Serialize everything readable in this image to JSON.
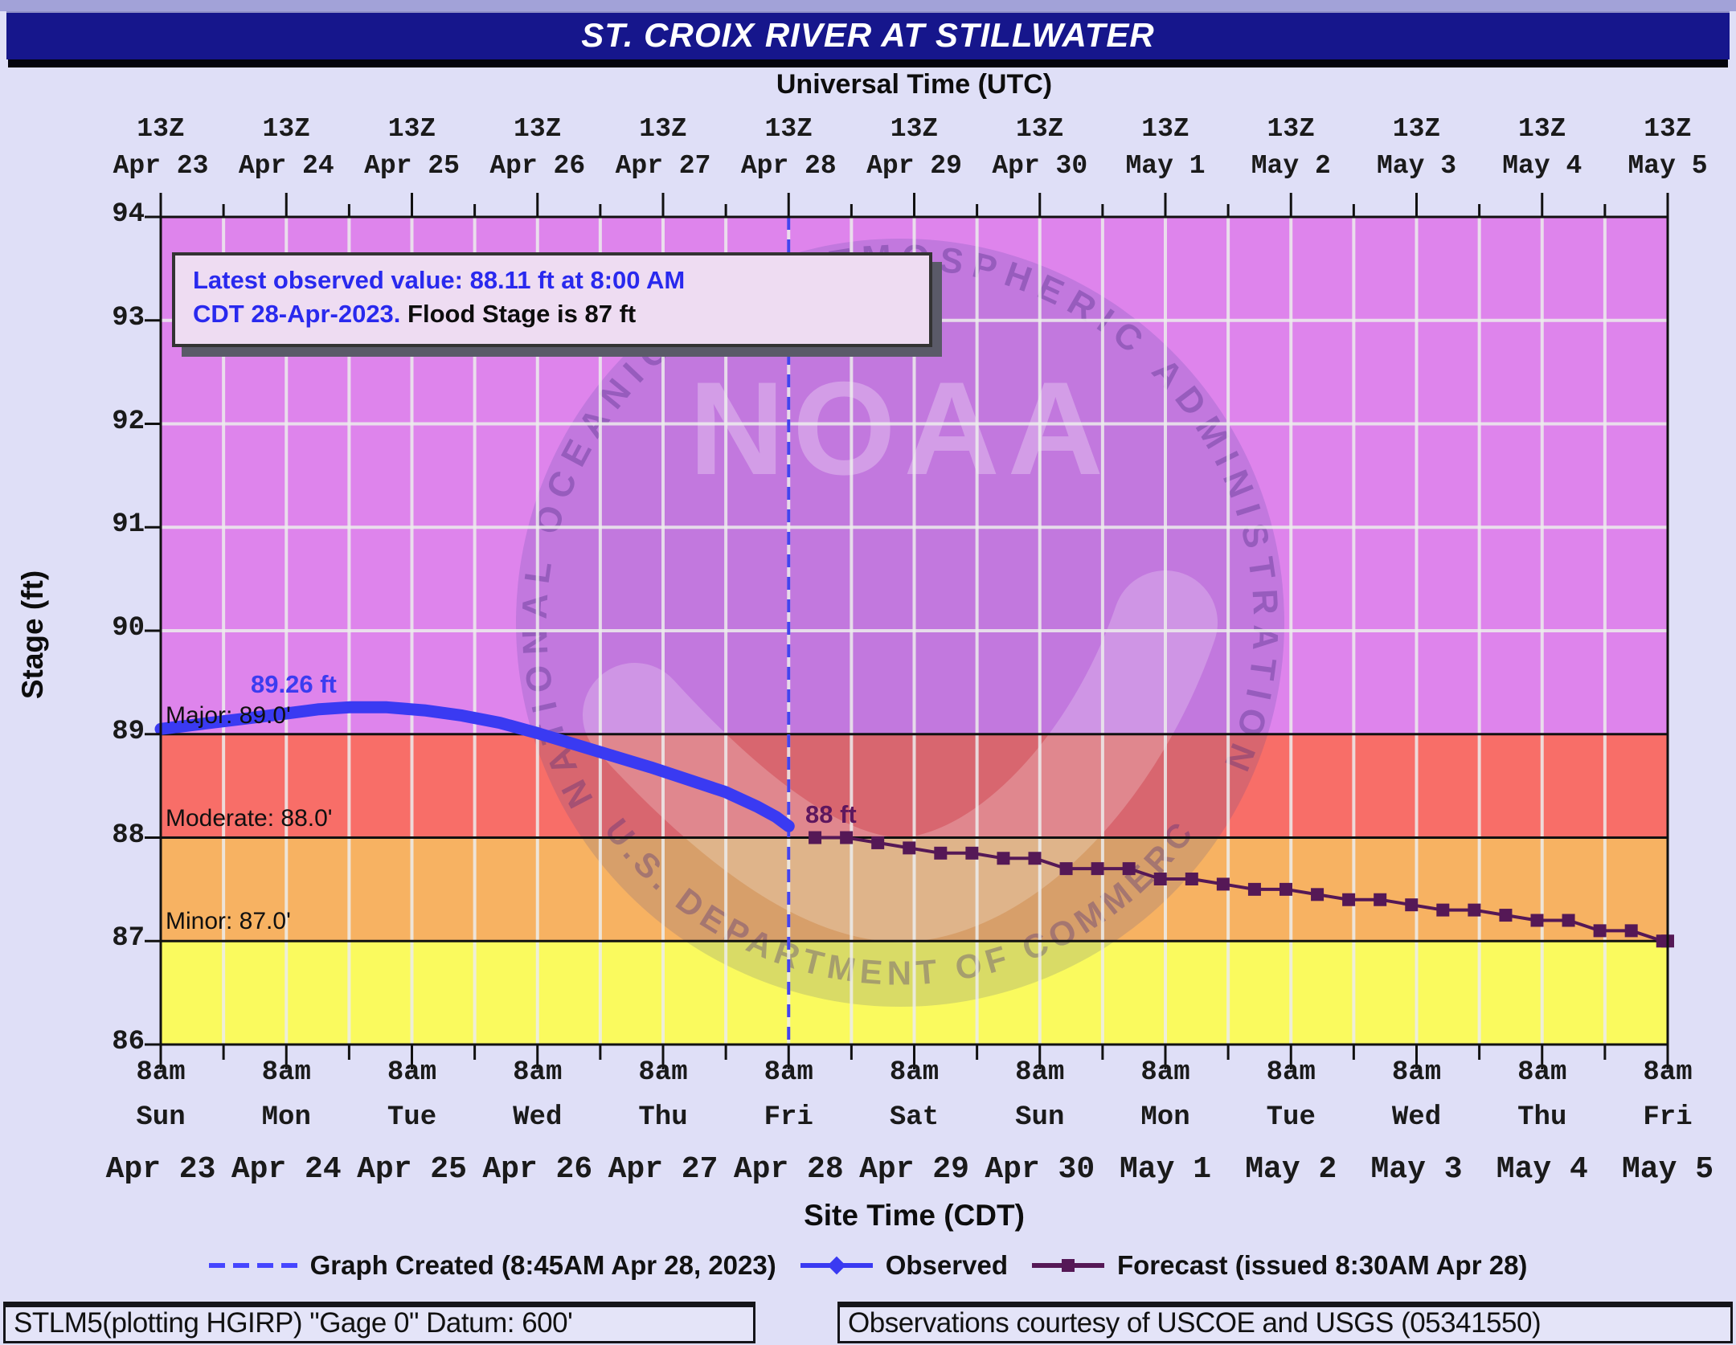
{
  "title_bar": {
    "text": "ST. CROIX RIVER AT STILLWATER"
  },
  "top_axis": {
    "label": "Universal Time (UTC)",
    "days": [
      {
        "z": "13Z",
        "date": "Apr 23"
      },
      {
        "z": "13Z",
        "date": "Apr 24"
      },
      {
        "z": "13Z",
        "date": "Apr 25"
      },
      {
        "z": "13Z",
        "date": "Apr 26"
      },
      {
        "z": "13Z",
        "date": "Apr 27"
      },
      {
        "z": "13Z",
        "date": "Apr 28"
      },
      {
        "z": "13Z",
        "date": "Apr 29"
      },
      {
        "z": "13Z",
        "date": "Apr 30"
      },
      {
        "z": "13Z",
        "date": "May 1"
      },
      {
        "z": "13Z",
        "date": "May 2"
      },
      {
        "z": "13Z",
        "date": "May 3"
      },
      {
        "z": "13Z",
        "date": "May 4"
      },
      {
        "z": "13Z",
        "date": "May 5"
      }
    ]
  },
  "bottom_axis": {
    "label": "Site Time (CDT)",
    "days": [
      {
        "time": "8am",
        "dow": "Sun",
        "date": "Apr 23"
      },
      {
        "time": "8am",
        "dow": "Mon",
        "date": "Apr 24"
      },
      {
        "time": "8am",
        "dow": "Tue",
        "date": "Apr 25"
      },
      {
        "time": "8am",
        "dow": "Wed",
        "date": "Apr 26"
      },
      {
        "time": "8am",
        "dow": "Thu",
        "date": "Apr 27"
      },
      {
        "time": "8am",
        "dow": "Fri",
        "date": "Apr 28"
      },
      {
        "time": "8am",
        "dow": "Sat",
        "date": "Apr 29"
      },
      {
        "time": "8am",
        "dow": "Sun",
        "date": "Apr 30"
      },
      {
        "time": "8am",
        "dow": "Mon",
        "date": "May 1"
      },
      {
        "time": "8am",
        "dow": "Tue",
        "date": "May 2"
      },
      {
        "time": "8am",
        "dow": "Wed",
        "date": "May 3"
      },
      {
        "time": "8am",
        "dow": "Thu",
        "date": "May 4"
      },
      {
        "time": "8am",
        "dow": "Fri",
        "date": "May 5"
      }
    ]
  },
  "y_axis": {
    "label": "Stage (ft)",
    "ticks": [
      94,
      93,
      92,
      91,
      90,
      89,
      88,
      87,
      86
    ]
  },
  "info_box": {
    "line1": "Latest observed value: 88.11 ft at 8:00 AM",
    "line2_blue": "CDT 28-Apr-2023.",
    "line2_black": " Flood Stage is 87 ft"
  },
  "flood_zones": {
    "major": {
      "label": "Major: 89.0'",
      "level": 89.0,
      "color": "#de84ec"
    },
    "moderate": {
      "label": "Moderate: 88.0'",
      "level": 88.0,
      "color": "#f86e68"
    },
    "minor": {
      "label": "Minor: 87.0'",
      "level": 87.0,
      "color": "#f7b262"
    },
    "below": {
      "color": "#fafa5e"
    }
  },
  "annotations": {
    "peak_label": "89.26 ft",
    "forecast_label": "88 ft"
  },
  "legend": {
    "created_label": "Graph Created (8:45AM Apr 28, 2023)",
    "observed_label": "Observed",
    "forecast_label": "Forecast (issued 8:30AM Apr 28)"
  },
  "footer": {
    "left": "STLM5(plotting HGIRP) \"Gage 0\" Datum: 600'",
    "right": "Observations courtesy of USCOE and USGS (05341550)"
  },
  "watermark": {
    "wordmark": "NOAA",
    "arc_top": "NATIONAL OCEANIC AND ATMOSPHERIC ADMINISTRATION",
    "arc_bottom": "U.S. DEPARTMENT OF COMMERCE"
  },
  "colors": {
    "observed": "#3a3af2",
    "forecast": "#551856",
    "created_line": "#4444ee",
    "grid": "#ededed",
    "axis": "#111111",
    "title_bg": "#16168c",
    "page_bg": "#dfdff7",
    "info_bg": "#eedcf2"
  },
  "chart_data": {
    "type": "line",
    "title": "ST. CROIX RIVER AT STILLWATER",
    "xlabel_top": "Universal Time (UTC)",
    "xlabel_bottom": "Site Time (CDT)",
    "ylabel": "Stage (ft)",
    "ylim": [
      86,
      94
    ],
    "x_unit": "days since Apr 23 8am CDT (ticks daily, gridlines every 12h)",
    "x_range": [
      0,
      12
    ],
    "flood_categories": {
      "minor_ft": 87.0,
      "moderate_ft": 88.0,
      "major_ft": 89.0,
      "flood_stage_ft": 87
    },
    "latest_observed": {
      "value_ft": 88.11,
      "time": "8:00 AM CDT 28-Apr-2023"
    },
    "graph_created_x": 5.0,
    "series": [
      {
        "name": "Observed",
        "color": "#3a3af2",
        "points": [
          [
            0,
            89.05
          ],
          [
            0.33,
            89.1
          ],
          [
            0.67,
            89.15
          ],
          [
            1.0,
            89.2
          ],
          [
            1.25,
            89.24
          ],
          [
            1.5,
            89.26
          ],
          [
            1.8,
            89.26
          ],
          [
            2.1,
            89.23
          ],
          [
            2.4,
            89.18
          ],
          [
            2.7,
            89.11
          ],
          [
            3.0,
            89.01
          ],
          [
            3.3,
            88.9
          ],
          [
            3.6,
            88.79
          ],
          [
            3.9,
            88.68
          ],
          [
            4.2,
            88.56
          ],
          [
            4.5,
            88.44
          ],
          [
            4.75,
            88.3
          ],
          [
            4.9,
            88.2
          ],
          [
            5.0,
            88.11
          ]
        ]
      },
      {
        "name": "Forecast",
        "color": "#551856",
        "marker": "square",
        "points": [
          [
            5.21,
            88.0
          ],
          [
            5.46,
            88.0
          ],
          [
            5.71,
            87.95
          ],
          [
            5.96,
            87.9
          ],
          [
            6.21,
            87.85
          ],
          [
            6.46,
            87.85
          ],
          [
            6.71,
            87.8
          ],
          [
            6.96,
            87.8
          ],
          [
            7.21,
            87.7
          ],
          [
            7.46,
            87.7
          ],
          [
            7.71,
            87.7
          ],
          [
            7.96,
            87.6
          ],
          [
            8.21,
            87.6
          ],
          [
            8.46,
            87.55
          ],
          [
            8.71,
            87.5
          ],
          [
            8.96,
            87.5
          ],
          [
            9.21,
            87.45
          ],
          [
            9.46,
            87.4
          ],
          [
            9.71,
            87.4
          ],
          [
            9.96,
            87.35
          ],
          [
            10.21,
            87.3
          ],
          [
            10.46,
            87.3
          ],
          [
            10.71,
            87.25
          ],
          [
            10.96,
            87.2
          ],
          [
            11.21,
            87.2
          ],
          [
            11.46,
            87.1
          ],
          [
            11.71,
            87.1
          ],
          [
            11.96,
            87.0
          ],
          [
            12.0,
            87.0
          ]
        ]
      }
    ]
  }
}
